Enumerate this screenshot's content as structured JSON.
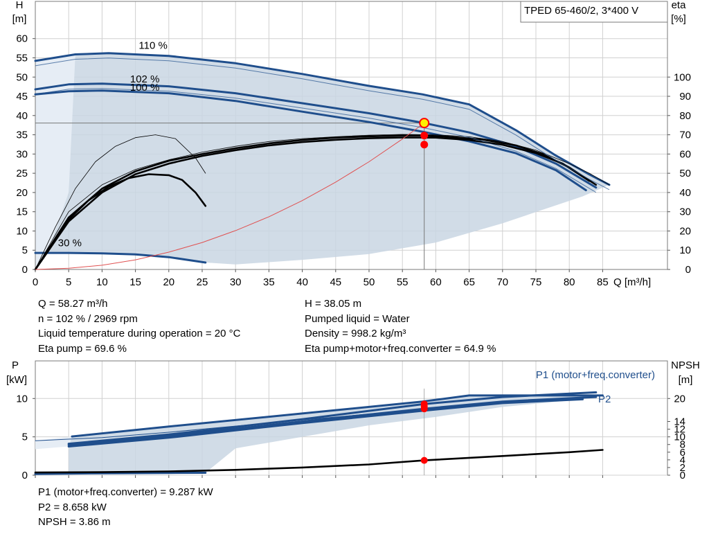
{
  "title": "TPED 65-460/2, 3*400 V",
  "colors": {
    "accent": "#1F4E8C",
    "envelope": "#C9D6E3",
    "duty_point": "#FF0000",
    "thin_red": "#E05050"
  },
  "chart_data": [
    {
      "type": "line",
      "name": "head-efficiency",
      "xlabel": "Q [m³/h]",
      "ylabel_left": "H [m]",
      "ylabel_right": "eta [%]",
      "xlim": [
        0,
        92
      ],
      "ylim_left": [
        0,
        63
      ],
      "ylim_right": [
        0,
        126
      ],
      "xticks": [
        0,
        5,
        10,
        15,
        20,
        25,
        30,
        35,
        40,
        45,
        50,
        55,
        60,
        65,
        70,
        75,
        80,
        85
      ],
      "yticks_left": [
        0,
        5,
        10,
        15,
        20,
        25,
        30,
        35,
        40,
        45,
        50,
        55,
        60
      ],
      "yticks_right": [
        0,
        10,
        20,
        30,
        40,
        50,
        60,
        70,
        80,
        90,
        100
      ],
      "grid": true,
      "curve_labels": [
        "110 %",
        "102 %",
        "100 %",
        "30 %"
      ],
      "series": [
        {
          "name": "110 %",
          "style": "thick-blue",
          "points": [
            [
              0,
              54.2
            ],
            [
              6,
              55.9
            ],
            [
              11,
              56.2
            ],
            [
              20,
              55.5
            ],
            [
              30,
              53.6
            ],
            [
              40,
              50.8
            ],
            [
              50,
              47.7
            ],
            [
              58,
              45.5
            ],
            [
              65,
              42.9
            ],
            [
              72,
              36.2
            ],
            [
              78,
              29.6
            ],
            [
              83,
              24.7
            ],
            [
              86,
              22.0
            ]
          ]
        },
        {
          "name": "102 %",
          "style": "thick-blue",
          "points": [
            [
              0,
              46.8
            ],
            [
              5,
              48.1
            ],
            [
              10,
              48.3
            ],
            [
              20,
              47.6
            ],
            [
              30,
              45.8
            ],
            [
              40,
              43.2
            ],
            [
              50,
              40.6
            ],
            [
              58.27,
              38.05
            ],
            [
              65,
              35.6
            ],
            [
              72,
              32.0
            ],
            [
              78,
              27.5
            ],
            [
              84,
              21.3
            ]
          ]
        },
        {
          "name": "100 %",
          "style": "thick-blue",
          "points": [
            [
              0,
              45.5
            ],
            [
              5,
              46.3
            ],
            [
              10,
              46.5
            ],
            [
              20,
              45.8
            ],
            [
              30,
              43.8
            ],
            [
              40,
              41.0
            ],
            [
              50,
              38.3
            ],
            [
              58,
              35.8
            ],
            [
              65,
              33.3
            ],
            [
              72,
              30.2
            ],
            [
              78,
              25.8
            ],
            [
              82.5,
              20.6
            ]
          ]
        },
        {
          "name": "30 %",
          "style": "thick-blue",
          "points": [
            [
              0,
              4.3
            ],
            [
              5,
              4.3
            ],
            [
              10,
              4.2
            ],
            [
              15,
              3.9
            ],
            [
              20,
              3.2
            ],
            [
              25.5,
              1.8
            ]
          ]
        },
        {
          "name": "eta 110 %",
          "style": "thin-black",
          "points": [
            [
              0,
              0
            ],
            [
              5,
              30
            ],
            [
              10,
              44
            ],
            [
              15,
              52
            ],
            [
              20,
              57
            ],
            [
              25,
              61
            ],
            [
              30,
              64
            ],
            [
              35,
              66.5
            ],
            [
              40,
              68
            ],
            [
              45,
              69
            ],
            [
              50,
              69.8
            ],
            [
              55,
              70.2
            ],
            [
              60,
              70
            ],
            [
              65,
              69
            ],
            [
              70,
              66.5
            ],
            [
              75,
              62
            ],
            [
              80,
              55
            ],
            [
              83,
              50
            ],
            [
              86,
              44
            ]
          ]
        },
        {
          "name": "eta 102 %",
          "style": "thick-black",
          "points": [
            [
              0,
              0
            ],
            [
              5,
              27
            ],
            [
              10,
              42
            ],
            [
              15,
              51
            ],
            [
              20,
              56.5
            ],
            [
              25,
              60
            ],
            [
              30,
              63
            ],
            [
              35,
              65.5
            ],
            [
              40,
              67.3
            ],
            [
              45,
              68.5
            ],
            [
              50,
              69.2
            ],
            [
              55,
              69.6
            ],
            [
              58.27,
              69.6
            ],
            [
              62,
              69
            ],
            [
              67,
              67.5
            ],
            [
              72,
              64.5
            ],
            [
              76,
              60
            ],
            [
              80,
              53
            ],
            [
              84,
              44
            ]
          ]
        },
        {
          "name": "eta 100 %",
          "style": "thick-black",
          "points": [
            [
              0,
              0
            ],
            [
              5,
              25
            ],
            [
              10,
              40
            ],
            [
              15,
              49.5
            ],
            [
              20,
              55
            ],
            [
              25,
              59
            ],
            [
              30,
              62
            ],
            [
              35,
              64.5
            ],
            [
              40,
              66.2
            ],
            [
              45,
              67.4
            ],
            [
              50,
              68.2
            ],
            [
              55,
              68.6
            ],
            [
              60,
              68.5
            ],
            [
              65,
              67.3
            ],
            [
              70,
              64.8
            ],
            [
              75,
              60.5
            ],
            [
              79,
              55
            ],
            [
              83,
              46
            ]
          ]
        },
        {
          "name": "eta 30 %",
          "style": "thick-black",
          "points": [
            [
              0,
              0
            ],
            [
              2,
              10
            ],
            [
              5,
              26
            ],
            [
              8,
              36
            ],
            [
              11,
              43
            ],
            [
              14,
              47.5
            ],
            [
              17,
              49.5
            ],
            [
              20,
              49
            ],
            [
              22,
              46.5
            ],
            [
              24,
              40
            ],
            [
              25.5,
              33
            ]
          ]
        },
        {
          "name": "eta 30 % thin",
          "style": "thin-black",
          "points": [
            [
              0,
              0
            ],
            [
              3,
              22
            ],
            [
              6,
              42
            ],
            [
              9,
              56
            ],
            [
              12,
              64
            ],
            [
              15,
              68.5
            ],
            [
              18,
              70
            ],
            [
              21,
              68
            ],
            [
              24,
              58
            ],
            [
              25.5,
              50
            ]
          ]
        },
        {
          "name": "system curve",
          "style": "thin-red",
          "points": [
            [
              0,
              0
            ],
            [
              5,
              0.3
            ],
            [
              10,
              1.1
            ],
            [
              15,
              2.5
            ],
            [
              20,
              4.5
            ],
            [
              25,
              7.0
            ],
            [
              30,
              10.1
            ],
            [
              35,
              13.7
            ],
            [
              40,
              17.9
            ],
            [
              45,
              22.7
            ],
            [
              50,
              28.0
            ],
            [
              55,
              33.9
            ],
            [
              58.27,
              38.05
            ]
          ]
        }
      ],
      "duty_points": [
        {
          "x": 58.27,
          "y": 38.05,
          "label": "H"
        }
      ],
      "duty_eta_points": [
        {
          "x": 58.27,
          "y": 69.6
        },
        {
          "x": 58.27,
          "y": 64.9
        }
      ],
      "envelope": [
        [
          0,
          54.2
        ],
        [
          6,
          55.9
        ],
        [
          11,
          56.2
        ],
        [
          20,
          55.5
        ],
        [
          30,
          53.6
        ],
        [
          40,
          50.8
        ],
        [
          50,
          47.7
        ],
        [
          58,
          45.5
        ],
        [
          65,
          42.9
        ],
        [
          72,
          36.2
        ],
        [
          78,
          29.6
        ],
        [
          83,
          24.7
        ],
        [
          86,
          22.0
        ],
        [
          82,
          19
        ],
        [
          70,
          12
        ],
        [
          60,
          7
        ],
        [
          50,
          4
        ],
        [
          40,
          2.5
        ],
        [
          30,
          1.3
        ],
        [
          25.5,
          1.8
        ],
        [
          20,
          3.2
        ],
        [
          15,
          3.9
        ],
        [
          10,
          4.2
        ],
        [
          5,
          4.3
        ],
        [
          0,
          4.3
        ]
      ]
    },
    {
      "type": "line",
      "name": "power-npsh",
      "xlabel": "Q [m³/h]",
      "ylabel_left": "P [kW]",
      "ylabel_right": "NPSH [m]",
      "xlim": [
        0,
        92
      ],
      "ylim_left": [
        0,
        12.5
      ],
      "ylim_right": [
        0,
        25
      ],
      "yticks_left": [
        0,
        5,
        10
      ],
      "yticks_right": [
        0,
        2,
        4,
        6,
        8,
        10,
        12,
        14,
        20
      ],
      "grid": true,
      "series": [
        {
          "name": "P1 (motor+freq.converter)",
          "style": "thick-blue",
          "points": [
            [
              5.5,
              5.05
            ],
            [
              20,
              6.35
            ],
            [
              40,
              8.05
            ],
            [
              58,
              9.6
            ],
            [
              65,
              10.4
            ],
            [
              85,
              10.4
            ]
          ]
        },
        {
          "name": "P1 thin",
          "style": "thin-blue",
          "points": [
            [
              0,
              4.5
            ],
            [
              10,
              4.9
            ],
            [
              20,
              5.6
            ],
            [
              40,
              7.2
            ],
            [
              58,
              8.6
            ],
            [
              70,
              9.6
            ],
            [
              84,
              10.2
            ]
          ]
        },
        {
          "name": "P1 102 %",
          "style": "thick-blue",
          "points": [
            [
              5,
              4.1
            ],
            [
              20,
              5.3
            ],
            [
              40,
              7.3
            ],
            [
              58.27,
              9.29
            ],
            [
              70,
              10.2
            ],
            [
              84,
              10.8
            ]
          ]
        },
        {
          "name": "P2",
          "style": "thick-blue",
          "points": [
            [
              5,
              3.95
            ],
            [
              20,
              5.1
            ],
            [
              40,
              7.0
            ],
            [
              58.27,
              8.66
            ],
            [
              70,
              9.6
            ],
            [
              84,
              10.2
            ]
          ]
        },
        {
          "name": "P2 100 %",
          "style": "thick-blue",
          "points": [
            [
              5,
              3.75
            ],
            [
              20,
              4.9
            ],
            [
              40,
              6.8
            ],
            [
              58,
              8.4
            ],
            [
              70,
              9.4
            ],
            [
              82,
              9.9
            ]
          ]
        },
        {
          "name": "P low",
          "style": "thick-blue",
          "points": [
            [
              0,
              0.15
            ],
            [
              10,
              0.25
            ],
            [
              20,
              0.3
            ],
            [
              25.5,
              0.32
            ]
          ]
        },
        {
          "name": "NPSH",
          "style": "thick-black",
          "points": [
            [
              0,
              0.7
            ],
            [
              10,
              0.8
            ],
            [
              20,
              1.0
            ],
            [
              30,
              1.4
            ],
            [
              40,
              2.0
            ],
            [
              50,
              2.8
            ],
            [
              58.27,
              3.86
            ],
            [
              70,
              5.0
            ],
            [
              80,
              6.0
            ],
            [
              85,
              6.6
            ]
          ]
        }
      ],
      "duty_points": [
        {
          "x": 58.27,
          "y": 9.287
        },
        {
          "x": 58.27,
          "y": 8.658
        }
      ],
      "duty_npsh_point": {
        "x": 58.27,
        "y": 3.86
      },
      "envelope": [
        [
          5.5,
          5.05
        ],
        [
          20,
          6.35
        ],
        [
          40,
          8.05
        ],
        [
          58,
          9.6
        ],
        [
          65,
          10.4
        ],
        [
          85,
          10.4
        ],
        [
          82,
          9.9
        ],
        [
          70,
          8.9
        ],
        [
          60,
          7.6
        ],
        [
          50,
          6.5
        ],
        [
          40,
          5.0
        ],
        [
          30,
          3.5
        ],
        [
          25.5,
          0.32
        ],
        [
          20,
          0.3
        ],
        [
          10,
          0.25
        ],
        [
          5,
          0.2
        ],
        [
          5,
          3.75
        ]
      ]
    }
  ],
  "legend_top": "P1 (motor+freq.converter)",
  "legend_bottom": "P2",
  "info_left": [
    "Q = 58.27 m³/h",
    "n = 102 % / 2969 rpm",
    "Liquid temperature during operation = 20 °C",
    "Eta pump = 69.6 %"
  ],
  "info_right": [
    "H = 38.05 m",
    "Pumped liquid = Water",
    "Density = 998.2 kg/m³",
    "Eta pump+motor+freq.converter = 64.9 %"
  ],
  "info_bottom": [
    "P1 (motor+freq.converter) = 9.287 kW",
    "P2 = 8.658 kW",
    "NPSH = 3.86 m"
  ],
  "axis_labels": {
    "top_left": [
      "H",
      "[m]"
    ],
    "top_right": [
      "eta",
      "[%]"
    ],
    "bottom_left": [
      "P",
      "[kW]"
    ],
    "bottom_right": [
      "NPSH",
      "[m]"
    ],
    "x": "Q [m³/h]"
  }
}
